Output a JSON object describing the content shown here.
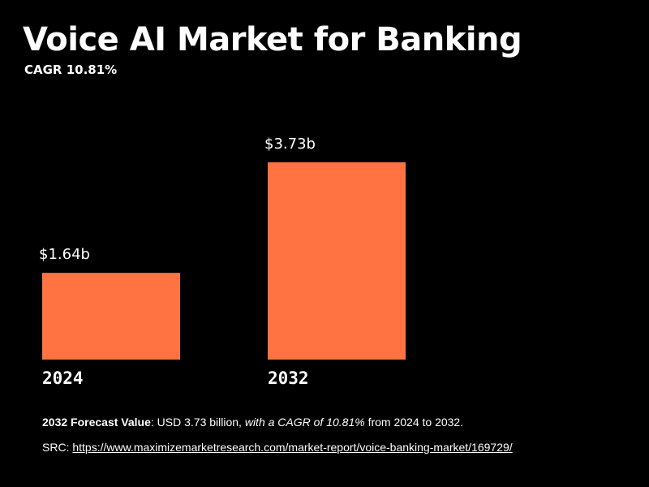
{
  "chart_data": {
    "type": "bar",
    "title": "Voice AI Market for Banking",
    "subtitle": "CAGR 10.81%",
    "categories": [
      "2024",
      "2032"
    ],
    "values": [
      1.64,
      3.73
    ],
    "data_labels": [
      "$1.64b",
      "$3.73b"
    ],
    "unit": "USD billion",
    "ylim": [
      0,
      3.73
    ],
    "grid": false,
    "bar_color": "#FF7342"
  },
  "footer": {
    "forecast_label": "2032 Forecast Value",
    "forecast_text_1": ": USD 3.73 billion, ",
    "forecast_text_italic": "with a CAGR of 10.81%",
    "forecast_text_2": " from 2024 to 2032.",
    "src_label": "SRC: ",
    "src_url": "https://www.maximizemarketresearch.com/market-report/voice-banking-market/169729/"
  }
}
